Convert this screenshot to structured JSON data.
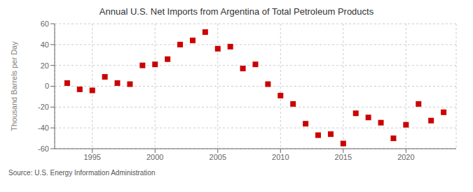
{
  "chart_data": {
    "type": "scatter",
    "title": "Annual U.S. Net Imports from Argentina of Total Petroleum Products",
    "ylabel": "Thousand Barrels per Day",
    "annotations": [
      "Source: U.S. Energy Information Administration"
    ],
    "x": [
      1993,
      1994,
      1995,
      1996,
      1997,
      1998,
      1999,
      2000,
      2001,
      2002,
      2003,
      2004,
      2005,
      2006,
      2007,
      2008,
      2009,
      2010,
      2011,
      2012,
      2013,
      2014,
      2015,
      2016,
      2017,
      2018,
      2019,
      2020,
      2021,
      2022,
      2023
    ],
    "values": [
      3,
      -3,
      -4,
      9,
      3,
      2,
      20,
      21,
      26,
      40,
      44,
      52,
      36,
      38,
      17,
      21,
      2,
      -9,
      -17,
      -36,
      -47,
      -46,
      -55,
      -26,
      -30,
      -35,
      -50,
      -37,
      -17,
      -33,
      -25
    ],
    "color": "#cc0000",
    "marker": "square",
    "xlim": [
      1992.0,
      2024.0
    ],
    "xticks": [
      1995,
      2000,
      2005,
      2010,
      2015,
      2020
    ],
    "ylim": [
      -60,
      60
    ],
    "yticks": [
      -60,
      -40,
      -20,
      0,
      20,
      40,
      60
    ],
    "grid": true
  }
}
